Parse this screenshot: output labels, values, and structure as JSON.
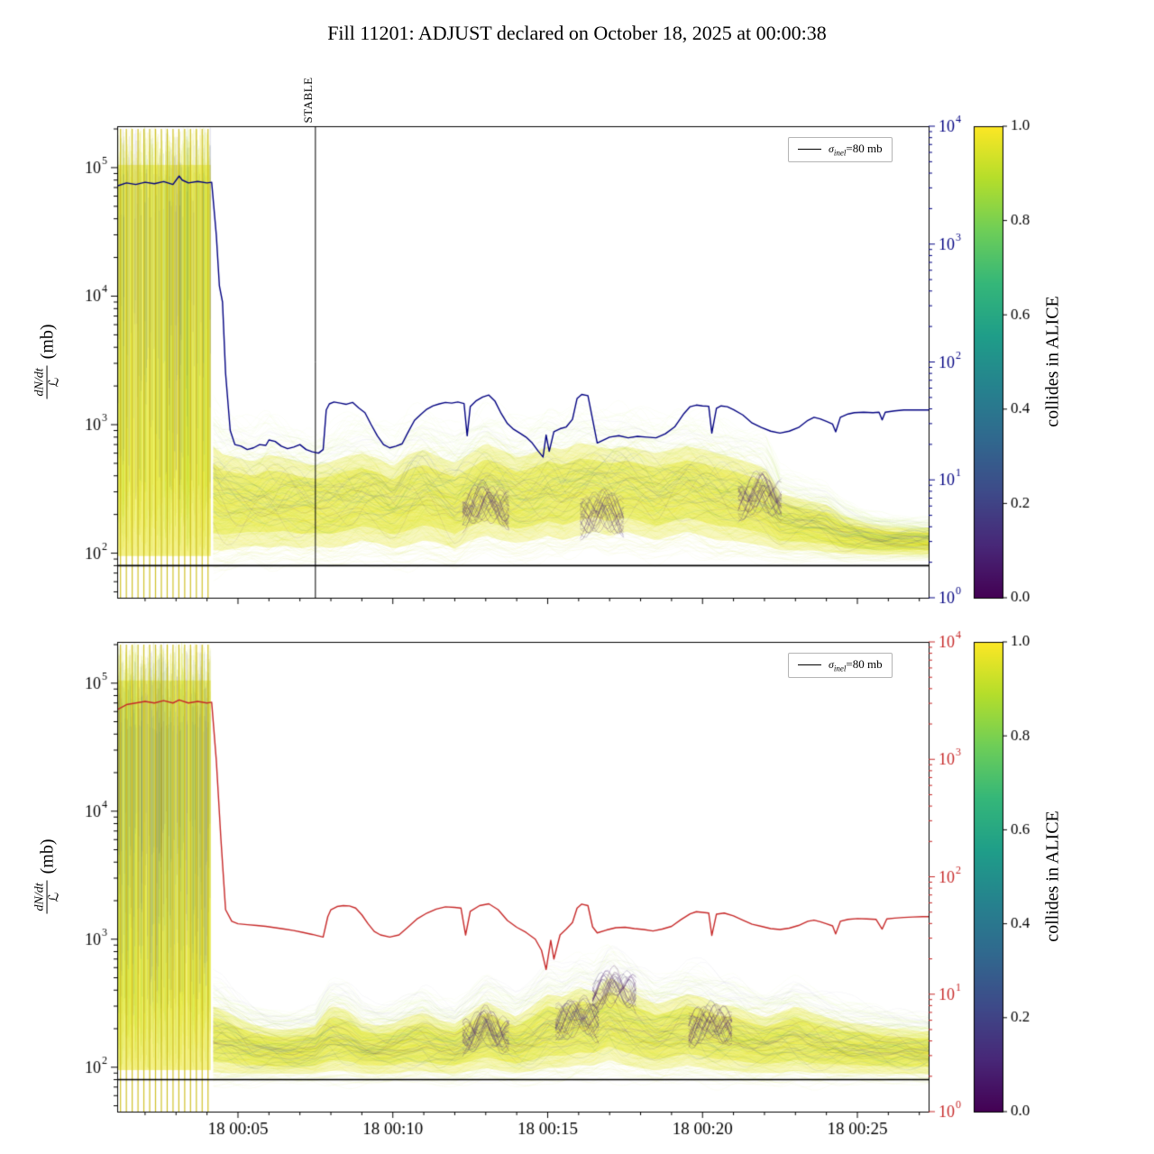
{
  "title": "Fill 11201: ADJUST declared on October 18, 2025 at 00:00:38",
  "stable_label": "STABLE",
  "ylabel": {
    "num": "dN/dt",
    "den": "ℒ",
    "unit": "(mb)"
  },
  "legend": {
    "sigma": "σ",
    "sub": "inel",
    "rest": "=80 mb"
  },
  "sigma_inel_mb": 80,
  "colors": {
    "navy": "#000080",
    "red": "#c62828",
    "sigma_line": "#000000",
    "band_yellow": "#e6d72e",
    "viridis": [
      "#440154",
      "#482878",
      "#3e4a89",
      "#31688e",
      "#26828e",
      "#1f9e89",
      "#35b779",
      "#6ece58",
      "#b5de2b",
      "#fde725"
    ]
  },
  "x_axis": {
    "domain": [
      1.1,
      27.3
    ],
    "major_tick_times": [
      5,
      10,
      15,
      20,
      25
    ],
    "tick_labels": [
      "18 00:05",
      "18 00:10",
      "18 00:15",
      "18 00:20",
      "18 00:25"
    ],
    "minor_every_min": 1
  },
  "left_axis": {
    "scale": "log",
    "tick_exps": [
      2,
      3,
      4,
      5
    ],
    "range": [
      45,
      210000
    ]
  },
  "right_axis": {
    "scale": "log",
    "tick_exps": [
      0,
      1,
      2,
      3,
      4
    ],
    "range": [
      1,
      10000
    ]
  },
  "colorbar": {
    "label": "collides in ALICE",
    "cmap": "viridis",
    "tick_values": [
      0,
      0.2,
      0.4,
      0.6,
      0.8,
      1.0
    ],
    "tick_labels": [
      "0.0",
      "0.2",
      "0.4",
      "0.6",
      "0.8",
      "1.0"
    ]
  },
  "chart_data": [
    {
      "panel": "top",
      "type": "line",
      "seed": 12345,
      "line_color": "#000080",
      "stable_time_min": 7.5,
      "burst": {
        "t_start": 1.12,
        "t_end": 4.12,
        "v_lo": 95,
        "v_hi": 105000,
        "comb_count": 16,
        "bright_strokes": 520,
        "dark_strokes": 130
      },
      "rate_line": {
        "t": [
          1.1,
          1.4,
          1.7,
          2.0,
          2.3,
          2.6,
          2.9,
          3.1,
          3.2,
          3.4,
          3.7,
          4.0,
          4.15,
          4.3,
          4.4,
          4.5,
          4.6,
          4.75,
          4.9,
          5.1,
          5.3,
          5.5,
          5.7,
          5.9,
          6.0,
          6.2,
          6.4,
          6.6,
          6.8,
          7.0,
          7.2,
          7.4,
          7.6,
          7.75,
          7.85,
          7.95,
          8.1,
          8.3,
          8.5,
          8.7,
          8.9,
          9.1,
          9.3,
          9.5,
          9.7,
          9.9,
          10.1,
          10.3,
          10.5,
          10.7,
          10.9,
          11.1,
          11.3,
          11.5,
          11.7,
          11.9,
          12.1,
          12.3,
          12.4,
          12.5,
          12.7,
          12.9,
          13.1,
          13.3,
          13.5,
          13.7,
          13.9,
          14.1,
          14.3,
          14.5,
          14.7,
          14.85,
          14.95,
          15.05,
          15.2,
          15.4,
          15.6,
          15.8,
          15.95,
          16.1,
          16.3,
          16.45,
          16.6,
          16.8,
          17.0,
          17.3,
          17.6,
          17.9,
          18.2,
          18.5,
          18.8,
          19.1,
          19.4,
          19.6,
          19.8,
          20.0,
          20.2,
          20.3,
          20.45,
          20.6,
          20.8,
          21.0,
          21.3,
          21.6,
          21.9,
          22.2,
          22.5,
          22.8,
          23.1,
          23.4,
          23.6,
          23.8,
          24.0,
          24.2,
          24.3,
          24.45,
          24.7,
          24.9,
          25.2,
          25.5,
          25.7,
          25.8,
          25.9,
          26.2,
          26.5,
          26.8,
          27.1,
          27.3
        ],
        "v": [
          72000,
          76000,
          74000,
          77000,
          75000,
          78000,
          74000,
          86000,
          80000,
          76000,
          78000,
          76000,
          77000,
          30000,
          12000,
          9000,
          2500,
          900,
          700,
          680,
          640,
          660,
          700,
          690,
          760,
          740,
          680,
          650,
          670,
          700,
          640,
          615,
          600,
          640,
          1300,
          1450,
          1500,
          1470,
          1440,
          1490,
          1350,
          1240,
          1000,
          820,
          700,
          660,
          680,
          710,
          880,
          1080,
          1200,
          1320,
          1400,
          1450,
          1490,
          1470,
          1500,
          1460,
          820,
          1380,
          1540,
          1640,
          1700,
          1520,
          1220,
          1020,
          920,
          860,
          800,
          720,
          620,
          560,
          830,
          620,
          880,
          930,
          960,
          1100,
          1600,
          1720,
          1680,
          1100,
          720,
          760,
          800,
          820,
          790,
          810,
          800,
          790,
          850,
          960,
          1220,
          1380,
          1420,
          1400,
          1390,
          860,
          1340,
          1400,
          1380,
          1310,
          1190,
          1030,
          950,
          890,
          860,
          890,
          950,
          1080,
          1140,
          1110,
          1060,
          1010,
          880,
          1140,
          1210,
          1240,
          1250,
          1240,
          1250,
          1090,
          1250,
          1280,
          1300,
          1300,
          1300,
          1300
        ]
      },
      "band": {
        "t": [
          4.2,
          4.5,
          5,
          5.5,
          6,
          6.5,
          7,
          7.5,
          8,
          8.5,
          9,
          9.5,
          10,
          10.5,
          11,
          11.5,
          12,
          12.5,
          13,
          13.5,
          14,
          14.5,
          15,
          15.5,
          16,
          16.5,
          17,
          17.5,
          18,
          18.5,
          19,
          19.5,
          20,
          20.5,
          21,
          21.5,
          22,
          22.5,
          23,
          23.5,
          24,
          24.5,
          25,
          25.5,
          26,
          26.5,
          27,
          27.3
        ],
        "lo": [
          95,
          95,
          100,
          105,
          100,
          105,
          100,
          105,
          100,
          105,
          115,
          110,
          100,
          105,
          115,
          110,
          100,
          115,
          125,
          115,
          110,
          115,
          125,
          115,
          125,
          135,
          125,
          135,
          125,
          115,
          125,
          135,
          125,
          115,
          115,
          110,
          105,
          100,
          100,
          100,
          98,
          95,
          95,
          95,
          95,
          95,
          95,
          95
        ],
        "hi": [
          750,
          650,
          600,
          560,
          640,
          600,
          560,
          520,
          560,
          620,
          650,
          600,
          510,
          640,
          700,
          610,
          550,
          650,
          780,
          700,
          600,
          650,
          740,
          700,
          790,
          750,
          700,
          740,
          700,
          650,
          700,
          740,
          700,
          650,
          600,
          550,
          500,
          310,
          285,
          265,
          250,
          205,
          185,
          172,
          165,
          162,
          160,
          160
        ]
      },
      "dark_features": [
        {
          "t": 13.0,
          "v": 260
        },
        {
          "t": 21.9,
          "v": 310
        },
        {
          "t": 16.8,
          "v": 220
        }
      ]
    },
    {
      "panel": "bottom",
      "type": "line",
      "seed": 98765,
      "line_color": "#c62828",
      "stable_time_min": null,
      "burst": {
        "t_start": 1.12,
        "t_end": 4.12,
        "v_lo": 95,
        "v_hi": 105000,
        "comb_count": 16,
        "bright_strokes": 520,
        "dark_strokes": 260
      },
      "rate_line": {
        "t": [
          1.1,
          1.4,
          1.7,
          2.0,
          2.3,
          2.6,
          2.9,
          3.1,
          3.4,
          3.7,
          4.0,
          4.15,
          4.3,
          4.45,
          4.6,
          4.8,
          5.0,
          5.3,
          5.6,
          5.9,
          6.2,
          6.5,
          6.8,
          7.1,
          7.4,
          7.6,
          7.75,
          7.9,
          8.0,
          8.2,
          8.4,
          8.6,
          8.8,
          9.0,
          9.2,
          9.4,
          9.6,
          9.9,
          10.2,
          10.5,
          10.8,
          11.1,
          11.4,
          11.7,
          12.0,
          12.2,
          12.35,
          12.5,
          12.8,
          13.1,
          13.4,
          13.7,
          14.0,
          14.3,
          14.6,
          14.8,
          14.95,
          15.1,
          15.2,
          15.4,
          15.6,
          15.8,
          15.95,
          16.1,
          16.3,
          16.45,
          16.6,
          16.9,
          17.2,
          17.5,
          17.8,
          18.1,
          18.4,
          18.7,
          19.0,
          19.3,
          19.6,
          19.8,
          20.0,
          20.2,
          20.3,
          20.45,
          20.7,
          21.0,
          21.3,
          21.6,
          21.9,
          22.2,
          22.5,
          22.8,
          23.1,
          23.4,
          23.6,
          23.8,
          24.0,
          24.2,
          24.3,
          24.45,
          24.7,
          25.0,
          25.3,
          25.6,
          25.8,
          25.95,
          26.2,
          26.5,
          26.8,
          27.1,
          27.3
        ],
        "v": [
          62000,
          68000,
          70000,
          72000,
          70000,
          73000,
          70000,
          74000,
          70000,
          72000,
          70000,
          71000,
          25000,
          6000,
          1700,
          1380,
          1320,
          1300,
          1280,
          1260,
          1230,
          1200,
          1170,
          1130,
          1090,
          1060,
          1040,
          1500,
          1700,
          1800,
          1830,
          1820,
          1750,
          1550,
          1320,
          1150,
          1080,
          1040,
          1080,
          1250,
          1450,
          1600,
          1720,
          1790,
          1770,
          1750,
          1080,
          1650,
          1830,
          1890,
          1700,
          1400,
          1240,
          1130,
          1000,
          820,
          580,
          980,
          700,
          1080,
          1200,
          1350,
          1750,
          1880,
          1830,
          1250,
          1120,
          1180,
          1230,
          1240,
          1210,
          1190,
          1160,
          1200,
          1260,
          1420,
          1580,
          1640,
          1620,
          1600,
          1070,
          1570,
          1600,
          1520,
          1410,
          1310,
          1260,
          1210,
          1190,
          1220,
          1280,
          1380,
          1410,
          1370,
          1320,
          1270,
          1100,
          1380,
          1430,
          1450,
          1440,
          1430,
          1200,
          1440,
          1460,
          1480,
          1490,
          1500,
          1500
        ]
      },
      "band": {
        "t": [
          4.2,
          4.5,
          5,
          5.5,
          6,
          6.5,
          7,
          7.5,
          8,
          8.5,
          9,
          9.5,
          10,
          10.5,
          11,
          11.5,
          12,
          12.5,
          13,
          13.5,
          14,
          14.5,
          15,
          15.5,
          16,
          16.5,
          17,
          17.5,
          18,
          18.5,
          19,
          19.5,
          20,
          20.5,
          21,
          21.5,
          22,
          22.5,
          23,
          23.5,
          24,
          24.5,
          25,
          25.5,
          26,
          26.5,
          27,
          27.3
        ],
        "lo": [
          85,
          85,
          85,
          85,
          85,
          85,
          85,
          85,
          88,
          88,
          85,
          85,
          85,
          88,
          88,
          85,
          85,
          88,
          92,
          88,
          85,
          88,
          92,
          92,
          96,
          96,
          105,
          96,
          92,
          88,
          92,
          96,
          92,
          88,
          88,
          85,
          85,
          85,
          88,
          85,
          85,
          85,
          85,
          85,
          85,
          85,
          85,
          85
        ],
        "hi": [
          320,
          300,
          255,
          225,
          210,
          205,
          210,
          220,
          320,
          300,
          235,
          220,
          230,
          260,
          285,
          245,
          230,
          280,
          350,
          300,
          260,
          320,
          400,
          380,
          450,
          420,
          550,
          450,
          380,
          330,
          360,
          400,
          380,
          330,
          320,
          285,
          260,
          285,
          320,
          285,
          260,
          240,
          230,
          220,
          210,
          205,
          200,
          200
        ]
      },
      "dark_features": [
        {
          "t": 17.2,
          "v": 430
        },
        {
          "t": 13.0,
          "v": 210
        },
        {
          "t": 20.3,
          "v": 240
        },
        {
          "t": 16.0,
          "v": 260
        }
      ]
    }
  ]
}
